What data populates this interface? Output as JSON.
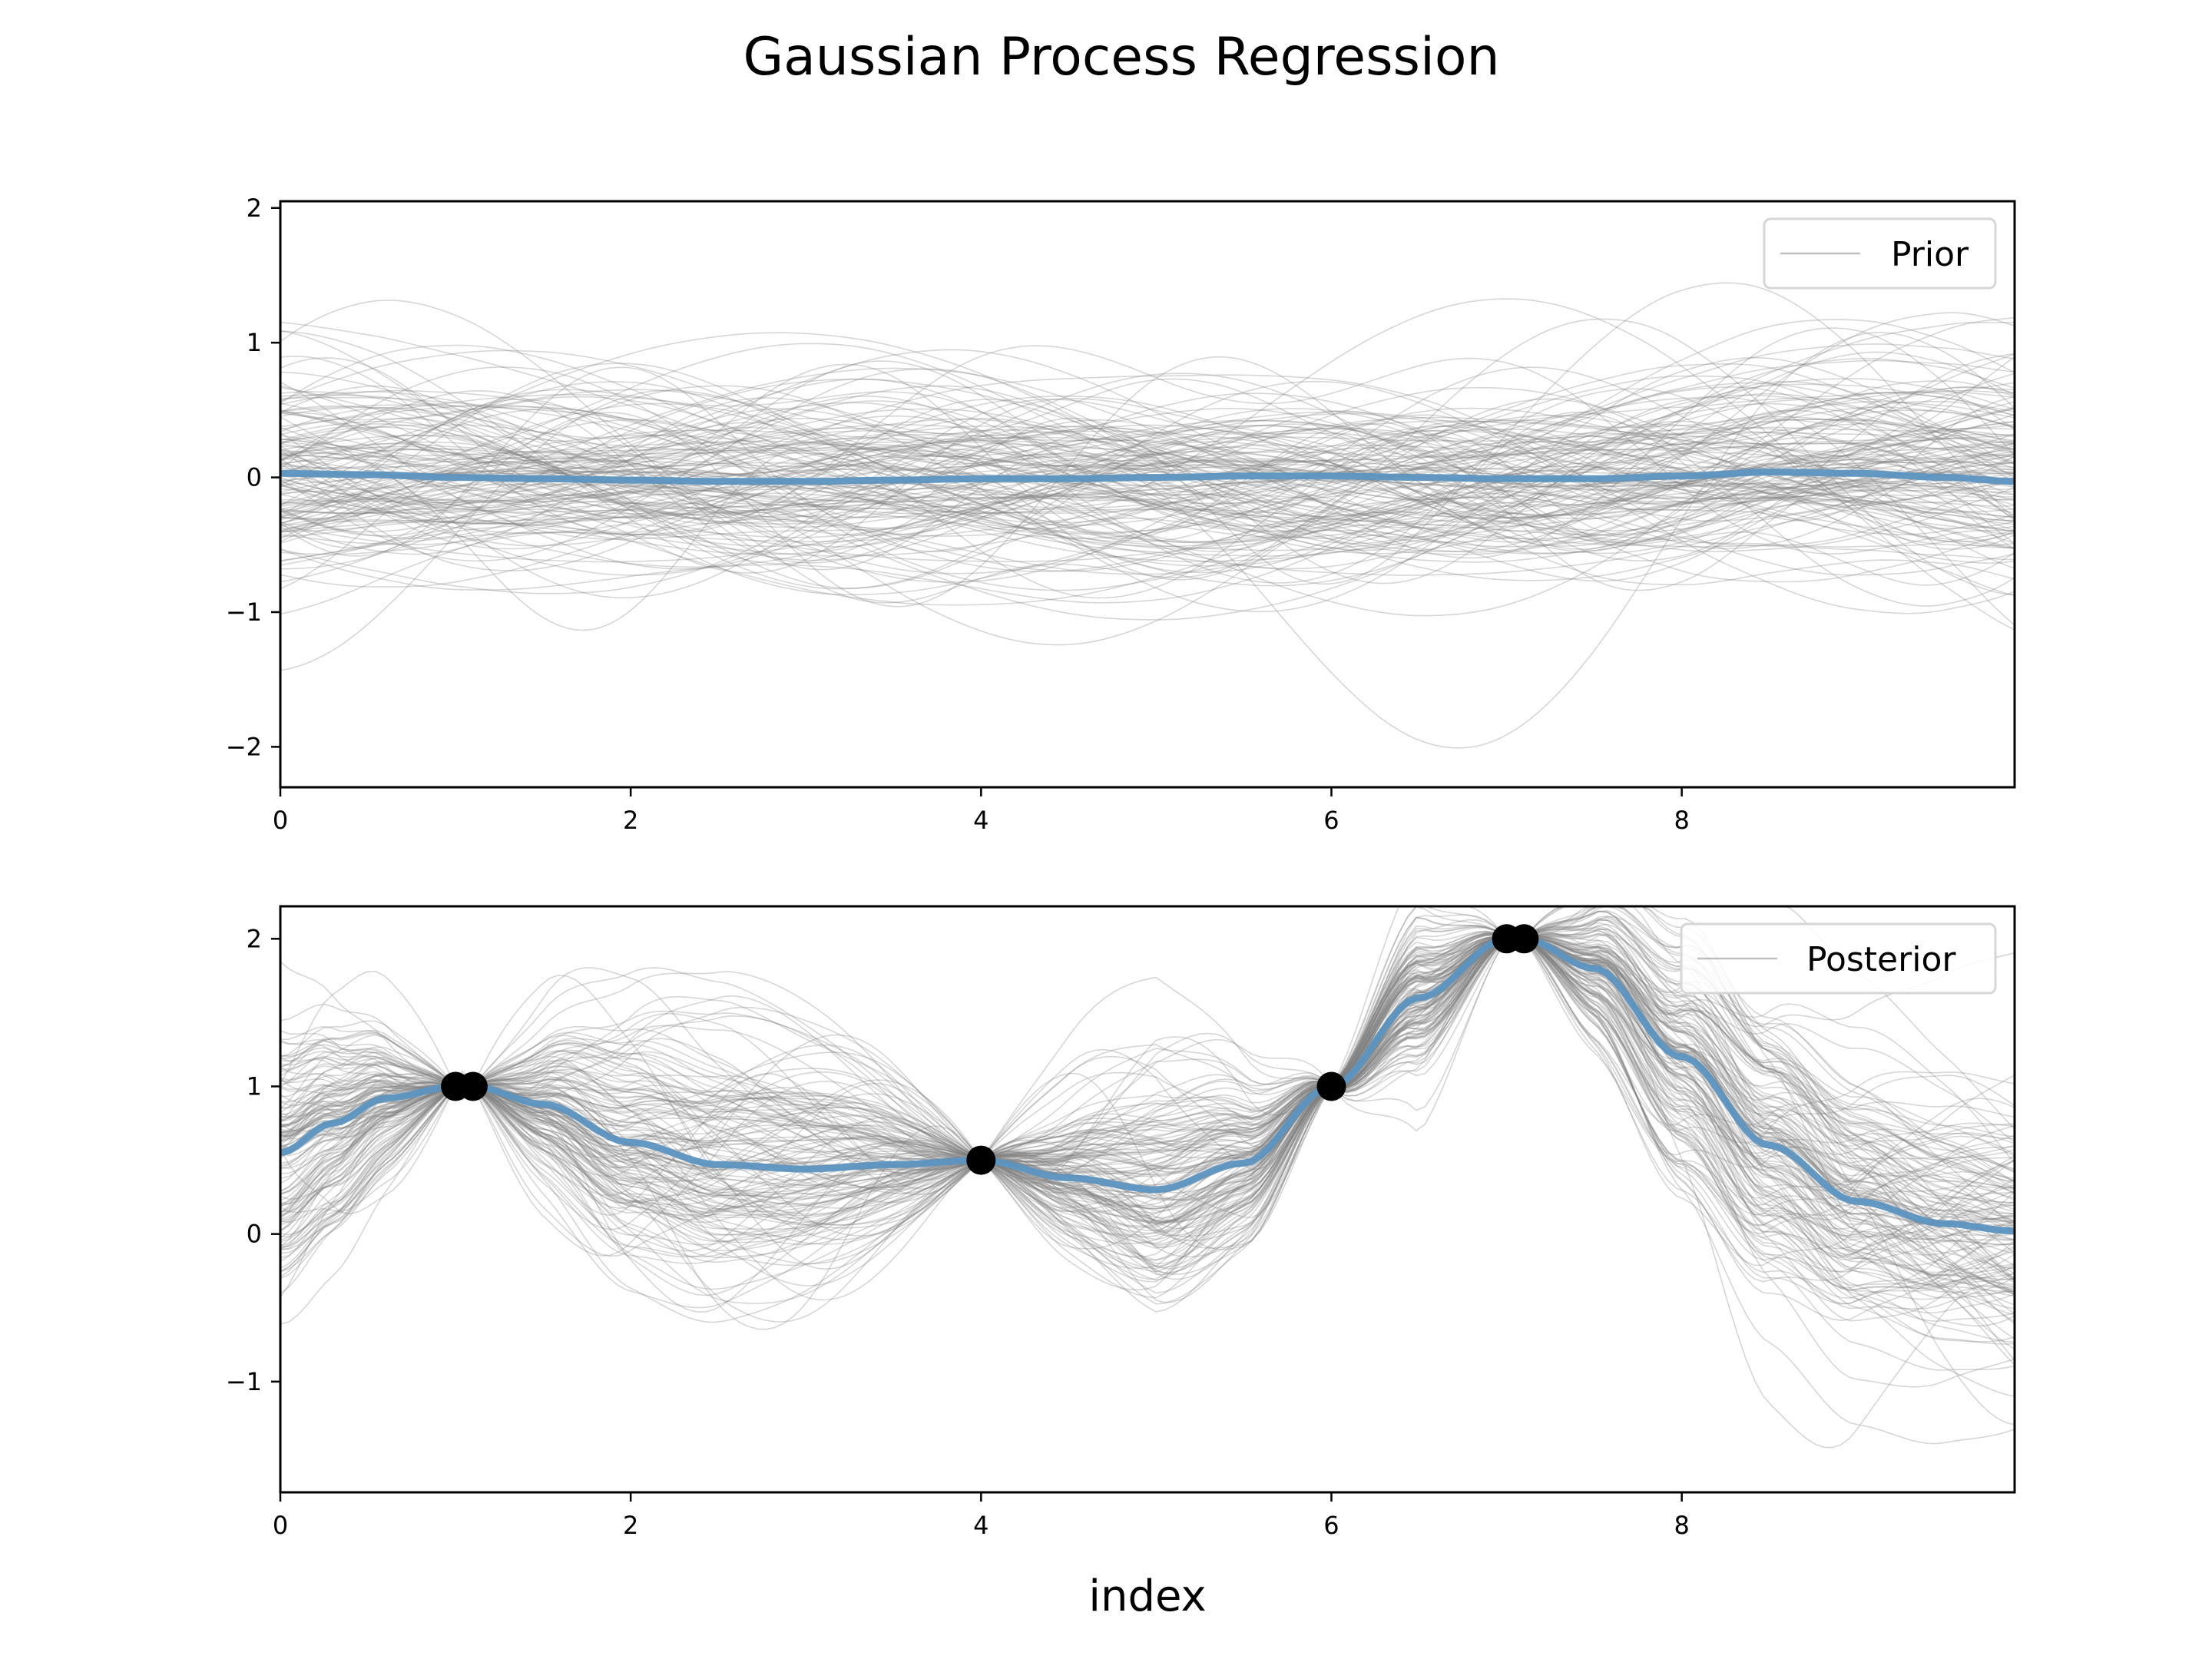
{
  "figure": {
    "title": "Gaussian Process Regression",
    "xlabel": "index"
  },
  "colors": {
    "mean": "#5b93bf",
    "samples": "#808080",
    "points": "#000000",
    "axes": "#000000"
  },
  "chart_data": [
    {
      "type": "line",
      "panel": "top",
      "legend": "Prior",
      "legend_loc": "upper right",
      "xlim": [
        0,
        9.9
      ],
      "ylim": [
        -2.3,
        2.05
      ],
      "xticks": [
        0,
        2,
        4,
        6,
        8
      ],
      "yticks": [
        -2,
        -1,
        0,
        1,
        2
      ],
      "ytick_labels": [
        "−2",
        "−1",
        "0",
        "1",
        "2"
      ],
      "samples": {
        "count": 150,
        "style": "thin grey translucent lines",
        "std": 0.55
      },
      "series": [
        {
          "x": [
            0,
            0.5,
            1,
            1.5,
            2,
            2.5,
            3,
            3.5,
            4,
            4.5,
            5,
            5.5,
            6,
            6.5,
            7,
            7.5,
            8,
            8.5,
            9,
            9.5,
            9.9
          ],
          "values": [
            0.03,
            0.02,
            0.0,
            -0.01,
            -0.02,
            -0.03,
            -0.03,
            -0.02,
            -0.01,
            -0.01,
            0.0,
            0.01,
            0.01,
            0.0,
            -0.01,
            -0.01,
            0.01,
            0.04,
            0.03,
            0.0,
            -0.03
          ]
        }
      ]
    },
    {
      "type": "line",
      "panel": "bottom",
      "legend": "Posterior",
      "legend_loc": "upper right",
      "xlim": [
        0,
        9.9
      ],
      "ylim": [
        -1.75,
        2.22
      ],
      "xticks": [
        0,
        2,
        4,
        6,
        8
      ],
      "yticks": [
        -1,
        0,
        1,
        2
      ],
      "ytick_labels": [
        "−1",
        "0",
        "1",
        "2"
      ],
      "samples": {
        "count": 150,
        "style": "thin grey translucent lines"
      },
      "observations": {
        "x": [
          1.0,
          1.1,
          4.0,
          6.0,
          7.0,
          7.1
        ],
        "y": [
          1.0,
          1.0,
          0.5,
          1.0,
          2.0,
          2.0
        ]
      },
      "series": [
        {
          "x": [
            0,
            0.3,
            0.6,
            1.0,
            1.1,
            1.5,
            2.0,
            2.5,
            3.0,
            3.5,
            4.0,
            4.5,
            5.0,
            5.5,
            6.0,
            6.5,
            7.0,
            7.1,
            7.5,
            8.0,
            8.5,
            9.0,
            9.5,
            9.9
          ],
          "values": [
            0.55,
            0.75,
            0.92,
            1.0,
            1.0,
            0.88,
            0.62,
            0.47,
            0.44,
            0.47,
            0.5,
            0.38,
            0.3,
            0.48,
            1.0,
            1.6,
            2.0,
            2.0,
            1.8,
            1.2,
            0.6,
            0.22,
            0.07,
            0.02
          ]
        }
      ]
    }
  ]
}
